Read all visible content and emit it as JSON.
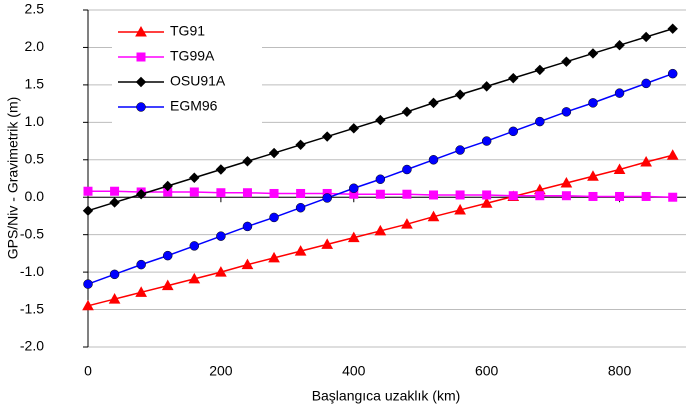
{
  "chart_data": {
    "type": "line",
    "xlabel": "Başlangıca uzaklık (km)",
    "ylabel": "GPS/Niv - Gravimetrik (m)",
    "x": [
      0,
      40,
      80,
      120,
      160,
      200,
      240,
      280,
      320,
      360,
      400,
      440,
      480,
      520,
      560,
      600,
      640,
      680,
      720,
      760,
      800,
      840,
      880
    ],
    "series": [
      {
        "name": "TG91",
        "color": "#ff0000",
        "marker": "triangle",
        "values": [
          -1.45,
          -1.36,
          -1.27,
          -1.18,
          -1.09,
          -1.0,
          -0.9,
          -0.81,
          -0.72,
          -0.63,
          -0.54,
          -0.45,
          -0.36,
          -0.26,
          -0.17,
          -0.08,
          0.01,
          0.1,
          0.19,
          0.28,
          0.37,
          0.47,
          0.56
        ]
      },
      {
        "name": "TG99A",
        "color": "#ff00ff",
        "marker": "square",
        "values": [
          0.08,
          0.08,
          0.07,
          0.07,
          0.07,
          0.06,
          0.06,
          0.05,
          0.05,
          0.05,
          0.04,
          0.04,
          0.04,
          0.03,
          0.03,
          0.03,
          0.02,
          0.02,
          0.02,
          0.01,
          0.01,
          0.01,
          0.0
        ]
      },
      {
        "name": "OSU91A",
        "color": "#000000",
        "marker": "diamond",
        "values": [
          -0.18,
          -0.07,
          0.04,
          0.15,
          0.26,
          0.37,
          0.48,
          0.59,
          0.7,
          0.81,
          0.92,
          1.03,
          1.14,
          1.26,
          1.37,
          1.48,
          1.59,
          1.7,
          1.81,
          1.92,
          2.03,
          2.14,
          2.25
        ]
      },
      {
        "name": "EGM96",
        "color": "#0000ff",
        "marker": "circle",
        "values": [
          -1.16,
          -1.03,
          -0.9,
          -0.78,
          -0.65,
          -0.52,
          -0.39,
          -0.27,
          -0.14,
          -0.01,
          0.12,
          0.24,
          0.37,
          0.5,
          0.63,
          0.75,
          0.88,
          1.01,
          1.14,
          1.26,
          1.39,
          1.52,
          1.65
        ]
      }
    ],
    "xlim": [
      0,
      900
    ],
    "xticks": [
      0,
      200,
      400,
      600,
      800
    ],
    "ylim": [
      -2,
      2.5
    ],
    "yticks": [
      {
        "value": -2,
        "label": "-2.0"
      },
      -1.5,
      {
        "value": -1,
        "label": "-1.0"
      },
      -0.5,
      {
        "value": 0,
        "label": "0.0"
      },
      0.5,
      {
        "value": 1,
        "label": "1.0"
      },
      1.5,
      {
        "value": 2,
        "label": "2.0"
      },
      2.5
    ],
    "grid": true,
    "legend": "upper left"
  }
}
